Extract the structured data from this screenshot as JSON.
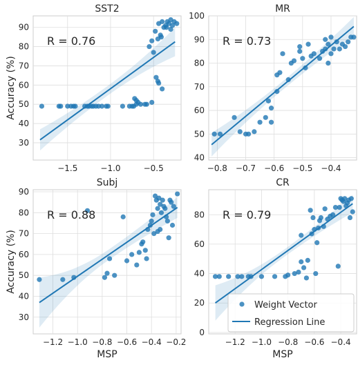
{
  "colors": {
    "series": "#1f77b4"
  },
  "legend": {
    "placement": "lower-right",
    "entries": [
      {
        "label": "Weight Vector",
        "type": "point"
      },
      {
        "label": "Regression Line",
        "type": "line"
      }
    ]
  },
  "chart_data": [
    {
      "type": "scatter",
      "title": "SST2",
      "xlabel": "",
      "ylabel": "Accuracy (%)",
      "annotation": "R = 0.76",
      "xlim": [
        -1.9,
        -0.18
      ],
      "ylim": [
        21,
        96
      ],
      "xticks": [
        -1.5,
        -1.0,
        -0.5
      ],
      "xtick_labels": [
        "−1.5",
        "−1.0",
        "−0.5"
      ],
      "yticks": [
        30,
        40,
        50,
        60,
        70,
        80,
        90
      ],
      "ytick_labels": [
        "30",
        "40",
        "50",
        "60",
        "70",
        "80",
        "90"
      ],
      "regression": {
        "x": [
          -1.82,
          -0.25
        ],
        "y": [
          31.5,
          82.5
        ],
        "band_halfwidth_at_ends": [
          5.5,
          7.5
        ],
        "band_halfwidth_at_center": 2.5
      },
      "points": [
        [
          -1.8,
          49
        ],
        [
          -1.6,
          49
        ],
        [
          -1.58,
          49
        ],
        [
          -1.5,
          49
        ],
        [
          -1.46,
          49
        ],
        [
          -1.43,
          49
        ],
        [
          -1.41,
          49
        ],
        [
          -1.3,
          49
        ],
        [
          -1.27,
          49
        ],
        [
          -1.25,
          49
        ],
        [
          -1.22,
          49
        ],
        [
          -1.2,
          49
        ],
        [
          -1.17,
          49
        ],
        [
          -1.14,
          49
        ],
        [
          -1.1,
          49
        ],
        [
          -1.05,
          49
        ],
        [
          -1.03,
          49
        ],
        [
          -0.86,
          49
        ],
        [
          -0.78,
          49
        ],
        [
          -0.75,
          49
        ],
        [
          -0.73,
          49
        ],
        [
          -0.7,
          50
        ],
        [
          -0.68,
          51
        ],
        [
          -0.72,
          53
        ],
        [
          -0.7,
          52
        ],
        [
          -0.65,
          50
        ],
        [
          -0.6,
          50
        ],
        [
          -0.58,
          50
        ],
        [
          -0.52,
          51
        ],
        [
          -0.47,
          64
        ],
        [
          -0.45,
          62
        ],
        [
          -0.44,
          61
        ],
        [
          -0.4,
          58
        ],
        [
          -0.55,
          80
        ],
        [
          -0.52,
          83
        ],
        [
          -0.48,
          88
        ],
        [
          -0.5,
          77
        ],
        [
          -0.45,
          84
        ],
        [
          -0.42,
          86
        ],
        [
          -0.41,
          85
        ],
        [
          -0.44,
          92
        ],
        [
          -0.4,
          93
        ],
        [
          -0.36,
          91
        ],
        [
          -0.34,
          93
        ],
        [
          -0.32,
          92
        ],
        [
          -0.3,
          94
        ],
        [
          -0.28,
          91
        ],
        [
          -0.26,
          93
        ],
        [
          -0.23,
          92
        ],
        [
          -0.38,
          90
        ],
        [
          -0.35,
          90
        ],
        [
          -0.3,
          89
        ]
      ]
    },
    {
      "type": "scatter",
      "title": "MR",
      "xlabel": "",
      "ylabel": "",
      "annotation": "R = 0.73",
      "xlim": [
        -0.83,
        -0.31
      ],
      "ylim": [
        39,
        100
      ],
      "xticks": [
        -0.8,
        -0.7,
        -0.6,
        -0.5,
        -0.4
      ],
      "xtick_labels": [
        "−0.8",
        "−0.7",
        "−0.6",
        "−0.5",
        "−0.4"
      ],
      "yticks": [
        40,
        50,
        60,
        70,
        80,
        90,
        100
      ],
      "ytick_labels": [
        "40",
        "50",
        "60",
        "70",
        "80",
        "90",
        "100"
      ],
      "regression": {
        "x": [
          -0.82,
          -0.32
        ],
        "y": [
          45.5,
          95.5
        ],
        "band_halfwidth_at_ends": [
          5,
          4
        ],
        "band_halfwidth_at_center": 1.8
      },
      "points": [
        [
          -0.81,
          50
        ],
        [
          -0.79,
          50
        ],
        [
          -0.74,
          57
        ],
        [
          -0.72,
          51
        ],
        [
          -0.7,
          50
        ],
        [
          -0.69,
          50
        ],
        [
          -0.67,
          51
        ],
        [
          -0.65,
          55
        ],
        [
          -0.63,
          57
        ],
        [
          -0.62,
          64
        ],
        [
          -0.61,
          61
        ],
        [
          -0.61,
          55
        ],
        [
          -0.59,
          68
        ],
        [
          -0.59,
          75
        ],
        [
          -0.58,
          76
        ],
        [
          -0.57,
          84
        ],
        [
          -0.55,
          73
        ],
        [
          -0.54,
          80
        ],
        [
          -0.53,
          81
        ],
        [
          -0.51,
          85
        ],
        [
          -0.51,
          87
        ],
        [
          -0.5,
          82
        ],
        [
          -0.49,
          78
        ],
        [
          -0.48,
          88
        ],
        [
          -0.47,
          83
        ],
        [
          -0.46,
          84
        ],
        [
          -0.44,
          82
        ],
        [
          -0.43,
          85
        ],
        [
          -0.42,
          86
        ],
        [
          -0.42,
          90
        ],
        [
          -0.41,
          88
        ],
        [
          -0.4,
          91
        ],
        [
          -0.4,
          84
        ],
        [
          -0.39,
          86
        ],
        [
          -0.38,
          89
        ],
        [
          -0.37,
          86
        ],
        [
          -0.36,
          88
        ],
        [
          -0.35,
          87
        ],
        [
          -0.34,
          89
        ],
        [
          -0.33,
          91
        ],
        [
          -0.32,
          91
        ],
        [
          -0.41,
          80
        ]
      ]
    },
    {
      "type": "scatter",
      "title": "Subj",
      "xlabel": "MSP",
      "ylabel": "Accuracy (%)",
      "annotation": "R = 0.88",
      "xlim": [
        -1.36,
        -0.16
      ],
      "ylim": [
        22,
        91
      ],
      "xticks": [
        -1.2,
        -1.0,
        -0.8,
        -0.6,
        -0.4,
        -0.2
      ],
      "xtick_labels": [
        "−1.2",
        "−1.0",
        "−0.8",
        "−0.6",
        "−0.4",
        "−0.2"
      ],
      "yticks": [
        30,
        40,
        50,
        60,
        70,
        80,
        90
      ],
      "ytick_labels": [
        "30",
        "40",
        "50",
        "60",
        "70",
        "80",
        "90"
      ],
      "regression": {
        "x": [
          -1.31,
          -0.19
        ],
        "y": [
          37,
          82.5
        ],
        "band_halfwidth_at_ends": [
          12,
          5
        ],
        "band_halfwidth_at_center": 2.5
      },
      "points": [
        [
          -1.31,
          48
        ],
        [
          -1.12,
          48
        ],
        [
          -1.03,
          49
        ],
        [
          -0.92,
          81
        ],
        [
          -0.78,
          49
        ],
        [
          -0.76,
          51
        ],
        [
          -0.74,
          58
        ],
        [
          -0.7,
          50
        ],
        [
          -0.63,
          78
        ],
        [
          -0.6,
          57
        ],
        [
          -0.56,
          60
        ],
        [
          -0.52,
          55
        ],
        [
          -0.5,
          61
        ],
        [
          -0.48,
          65
        ],
        [
          -0.47,
          66
        ],
        [
          -0.45,
          62
        ],
        [
          -0.44,
          58
        ],
        [
          -0.43,
          72
        ],
        [
          -0.41,
          74
        ],
        [
          -0.4,
          76
        ],
        [
          -0.39,
          79
        ],
        [
          -0.37,
          88
        ],
        [
          -0.36,
          86
        ],
        [
          -0.35,
          82
        ],
        [
          -0.34,
          87
        ],
        [
          -0.33,
          84
        ],
        [
          -0.32,
          80
        ],
        [
          -0.31,
          86
        ],
        [
          -0.3,
          83
        ],
        [
          -0.29,
          82
        ],
        [
          -0.28,
          78
        ],
        [
          -0.27,
          76
        ],
        [
          -0.26,
          68
        ],
        [
          -0.25,
          86
        ],
        [
          -0.24,
          85
        ],
        [
          -0.23,
          74
        ],
        [
          -0.22,
          83
        ],
        [
          -0.19,
          89
        ],
        [
          -0.38,
          70
        ],
        [
          -0.33,
          72
        ],
        [
          -0.35,
          71
        ]
      ]
    },
    {
      "type": "scatter",
      "title": "CR",
      "xlabel": "MSP",
      "ylabel": "",
      "annotation": "R = 0.79",
      "xlim": [
        -1.4,
        -0.28
      ],
      "ylim": [
        -1,
        97
      ],
      "xticks": [
        -1.2,
        -1.0,
        -0.8,
        -0.6,
        -0.4
      ],
      "xtick_labels": [
        "−1.2",
        "−1.0",
        "−0.8",
        "−0.6",
        "−0.4"
      ],
      "yticks": [
        0,
        20,
        40,
        60,
        80
      ],
      "ytick_labels": [
        "0",
        "20",
        "40",
        "60",
        "80"
      ],
      "regression": {
        "x": [
          -1.35,
          -0.31
        ],
        "y": [
          20,
          87.5
        ],
        "band_halfwidth_at_ends": [
          12,
          6
        ],
        "band_halfwidth_at_center": 2.5
      },
      "points": [
        [
          -1.35,
          38
        ],
        [
          -1.32,
          38
        ],
        [
          -1.25,
          38
        ],
        [
          -1.18,
          38
        ],
        [
          -1.15,
          38
        ],
        [
          -1.1,
          38
        ],
        [
          -1.08,
          38
        ],
        [
          -1.0,
          38
        ],
        [
          -0.9,
          38
        ],
        [
          -0.82,
          38
        ],
        [
          -0.8,
          39
        ],
        [
          -0.75,
          40
        ],
        [
          -0.72,
          41
        ],
        [
          -0.7,
          48
        ],
        [
          -0.68,
          44
        ],
        [
          -0.66,
          37
        ],
        [
          -0.65,
          49
        ],
        [
          -0.62,
          67
        ],
        [
          -0.6,
          70
        ],
        [
          -0.59,
          40
        ],
        [
          -0.58,
          61
        ],
        [
          -0.56,
          76
        ],
        [
          -0.55,
          78
        ],
        [
          -0.53,
          72
        ],
        [
          -0.52,
          84
        ],
        [
          -0.5,
          77
        ],
        [
          -0.48,
          79
        ],
        [
          -0.46,
          80
        ],
        [
          -0.44,
          85
        ],
        [
          -0.42,
          45
        ],
        [
          -0.41,
          85
        ],
        [
          -0.4,
          91
        ],
        [
          -0.39,
          90
        ],
        [
          -0.38,
          89
        ],
        [
          -0.37,
          91
        ],
        [
          -0.36,
          86
        ],
        [
          -0.35,
          88
        ],
        [
          -0.34,
          90
        ],
        [
          -0.32,
          91
        ],
        [
          -0.31,
          82
        ],
        [
          -0.33,
          78
        ],
        [
          -0.63,
          83
        ],
        [
          -0.61,
          78
        ],
        [
          -0.7,
          66
        ],
        [
          -0.57,
          71
        ]
      ]
    }
  ]
}
